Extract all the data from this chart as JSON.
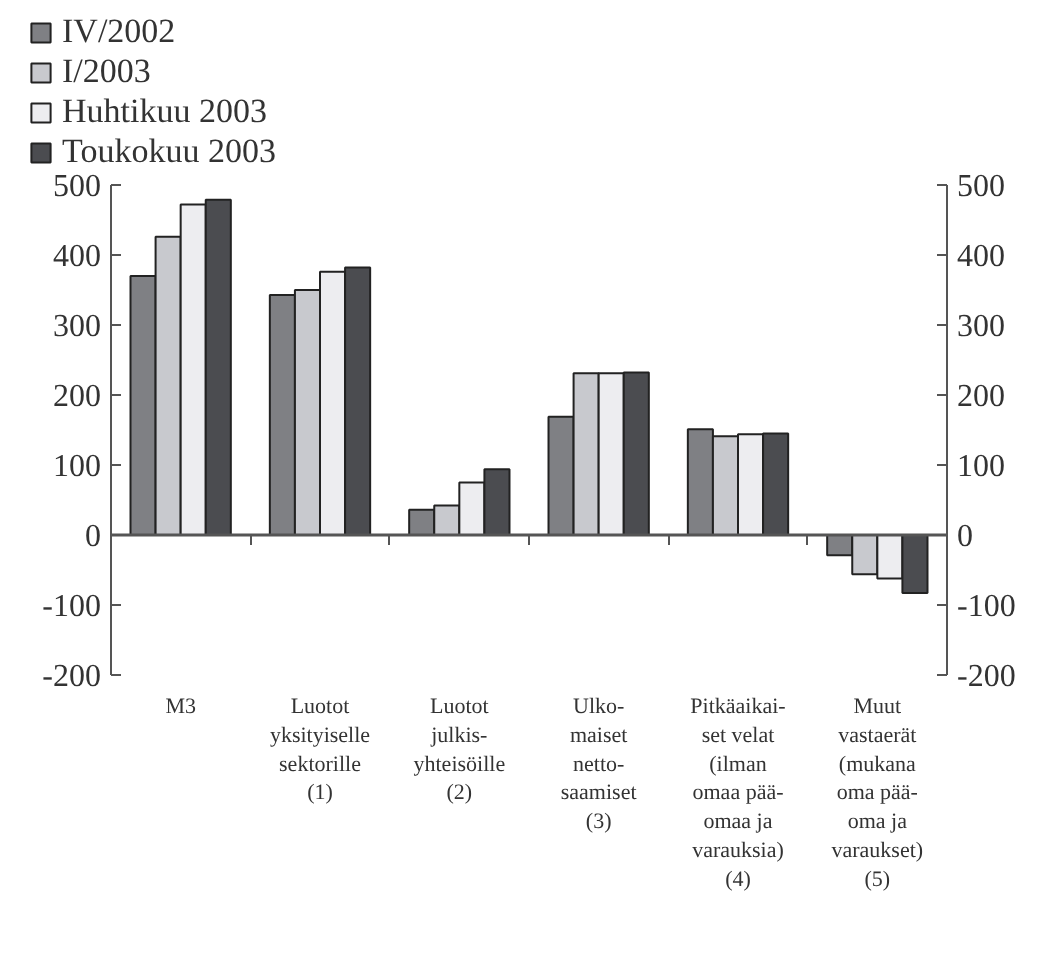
{
  "chart_data": {
    "type": "bar",
    "categories": [
      "M3",
      "Luotot\nyksityiselle\nsektorille\n(1)",
      "Luotot\njulkis-\nyhteisöille\n(2)",
      "Ulko-\nmaiset\nnetto-\nsaamiset\n(3)",
      "Pitkäaikai-\nset velat\n(ilman\nomaa pää-\nomaa ja\nvarauksia)\n(4)",
      "Muut\nvastaerät\n(mukana\noma pää-\noma ja\nvaraukset)\n(5)"
    ],
    "series": [
      {
        "name": "IV/2002",
        "color": "#7f8084",
        "values": [
          370,
          343,
          36,
          169,
          151,
          -29
        ]
      },
      {
        "name": "I/2003",
        "color": "#c8c9ce",
        "values": [
          426,
          350,
          42,
          231,
          141,
          -56
        ]
      },
      {
        "name": "Huhtikuu 2003",
        "color": "#ededf0",
        "values": [
          472,
          376,
          75,
          231,
          144,
          -62
        ]
      },
      {
        "name": "Toukokuu 2003",
        "color": "#4b4c50",
        "values": [
          479,
          382,
          94,
          232,
          145,
          -83
        ]
      }
    ],
    "ylim": [
      -200,
      500
    ],
    "yticks": [
      -200,
      -100,
      0,
      100,
      200,
      300,
      400,
      500
    ],
    "y2lim": [
      -200,
      500
    ],
    "y2ticks": [
      -200,
      -100,
      0,
      100,
      200,
      300,
      400,
      500
    ],
    "legend": "top left"
  }
}
